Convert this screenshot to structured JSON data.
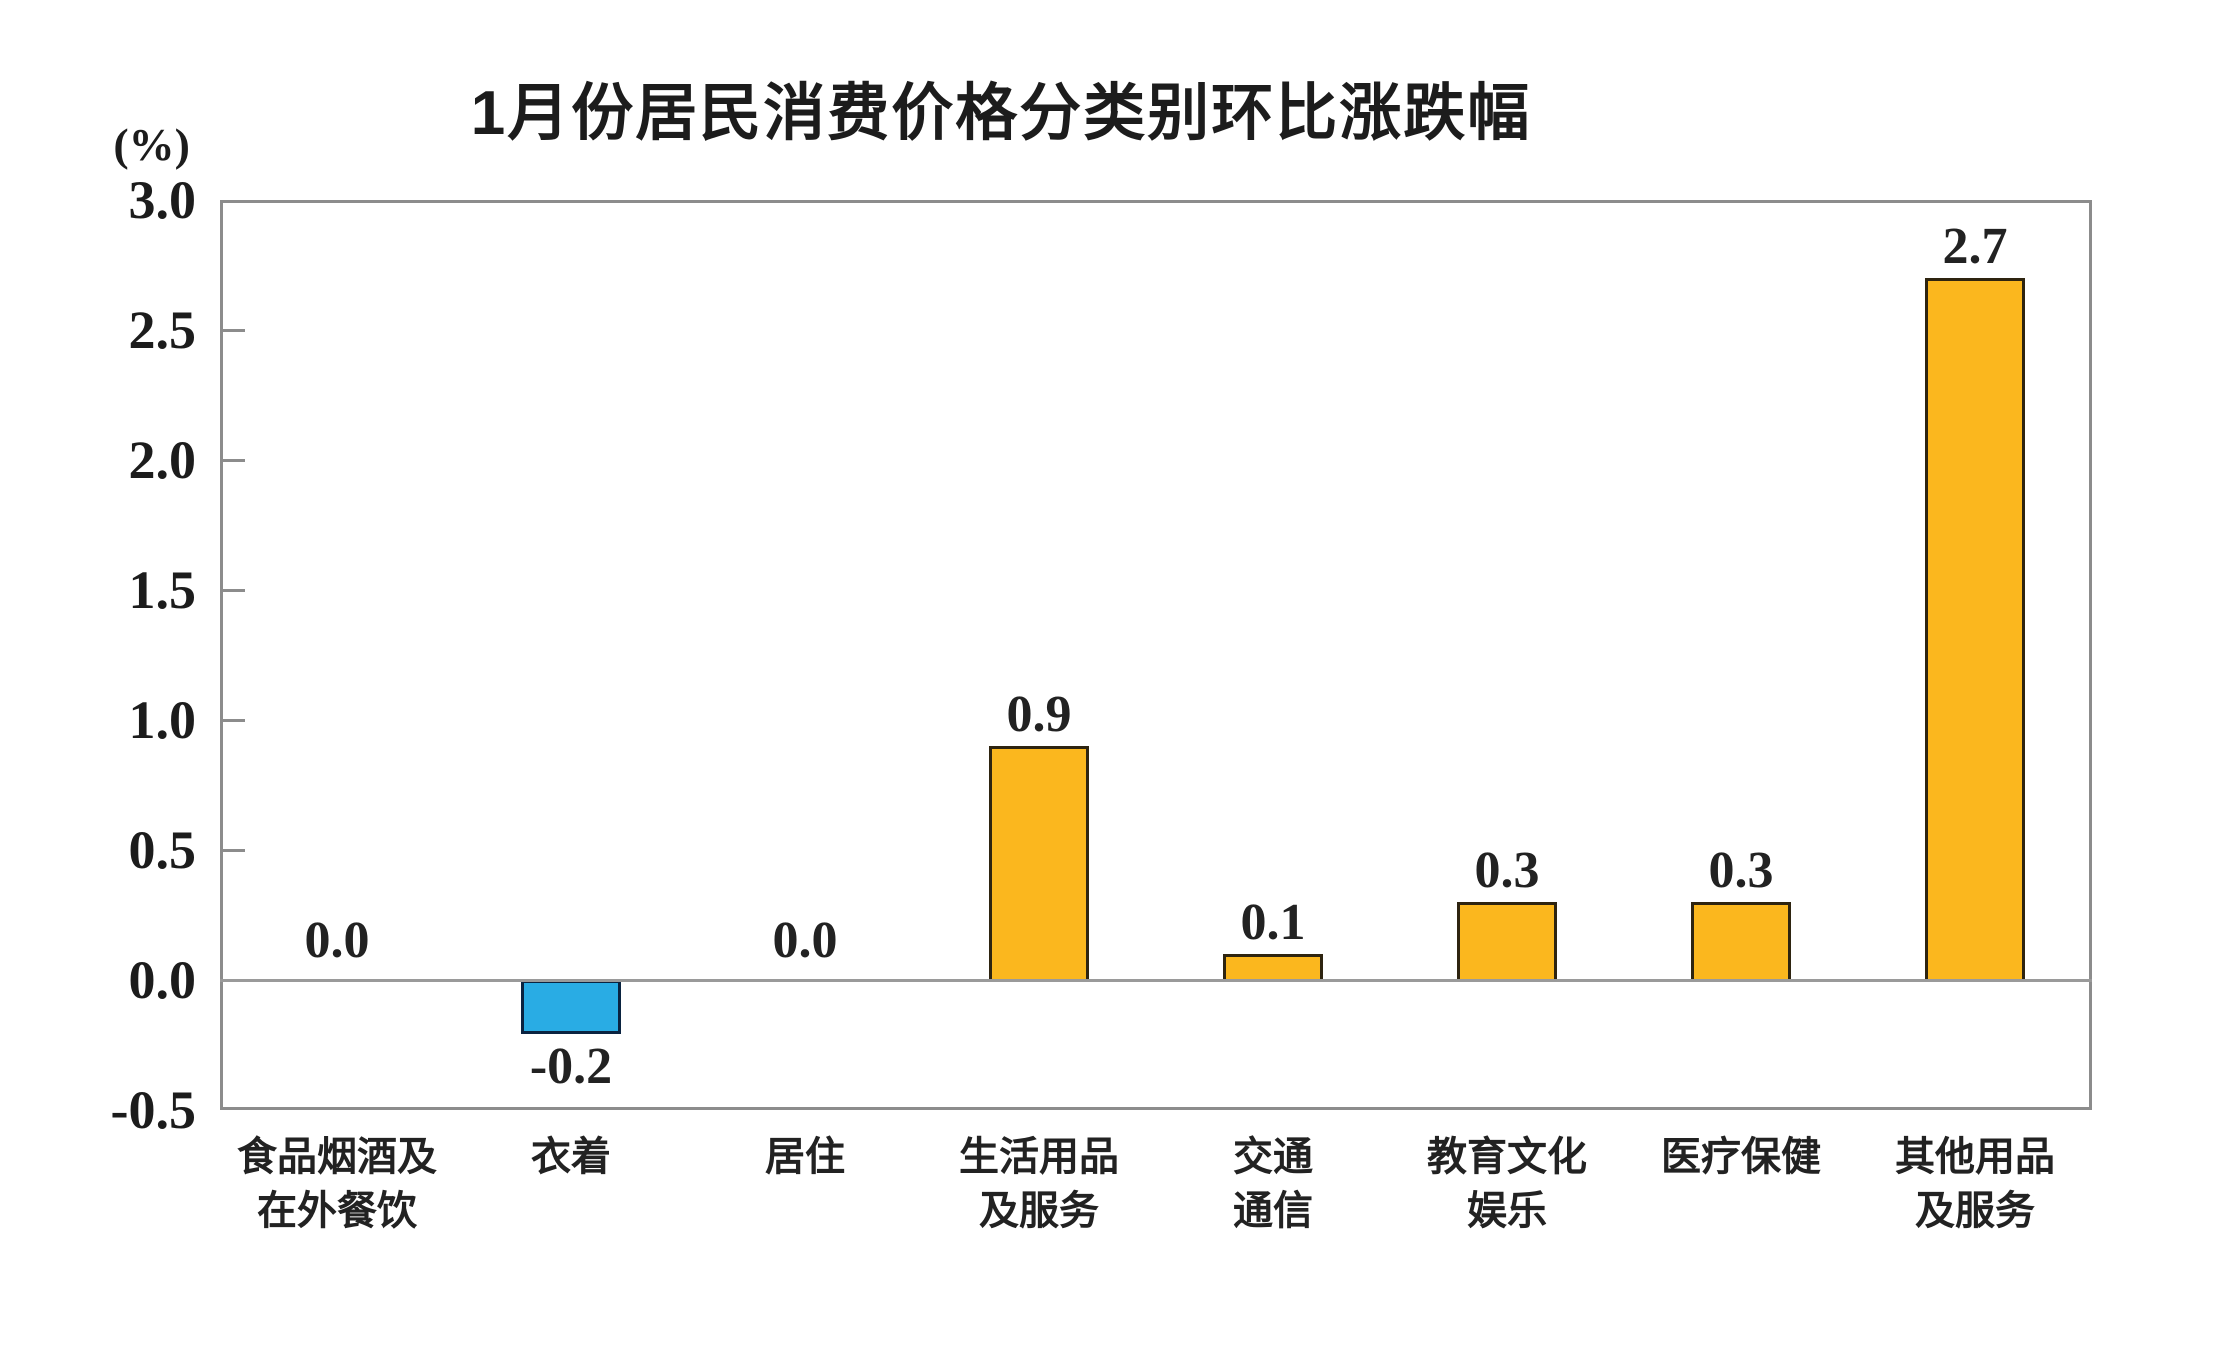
{
  "chart": {
    "title": "1月份居民消费价格分类别环比涨跌幅",
    "unit_label": "(%)"
  },
  "chart_data": {
    "type": "bar",
    "title": "1月份居民消费价格分类别环比涨跌幅",
    "xlabel": "",
    "ylabel": "(%)",
    "categories": [
      "食品烟酒及\n在外餐饮",
      "衣着",
      "居住",
      "生活用品\n及服务",
      "交通\n通信",
      "教育文化\n娱乐",
      "医疗保健",
      "其他用品\n及服务"
    ],
    "values": [
      0.0,
      -0.2,
      0.0,
      0.9,
      0.1,
      0.3,
      0.3,
      2.7
    ],
    "value_labels": [
      "0.0",
      "-0.2",
      "0.0",
      "0.9",
      "0.1",
      "0.3",
      "0.3",
      "2.7"
    ],
    "y_tick_labels": [
      "3.0",
      "2.5",
      "2.0",
      "1.5",
      "1.0",
      "0.5",
      "0.0",
      "-0.5"
    ],
    "ylim": [
      -0.5,
      3.0
    ],
    "grid": false,
    "legend": "none",
    "colors": {
      "bar_positive": "#FBB71E",
      "bar_positive_border": "#2E2410",
      "bar_negative": "#29ACE4",
      "bar_negative_border": "#0A2340",
      "frame": "#8C8C8C",
      "zero_line": "#9A9A9A",
      "text": "#1F1F1F"
    }
  }
}
